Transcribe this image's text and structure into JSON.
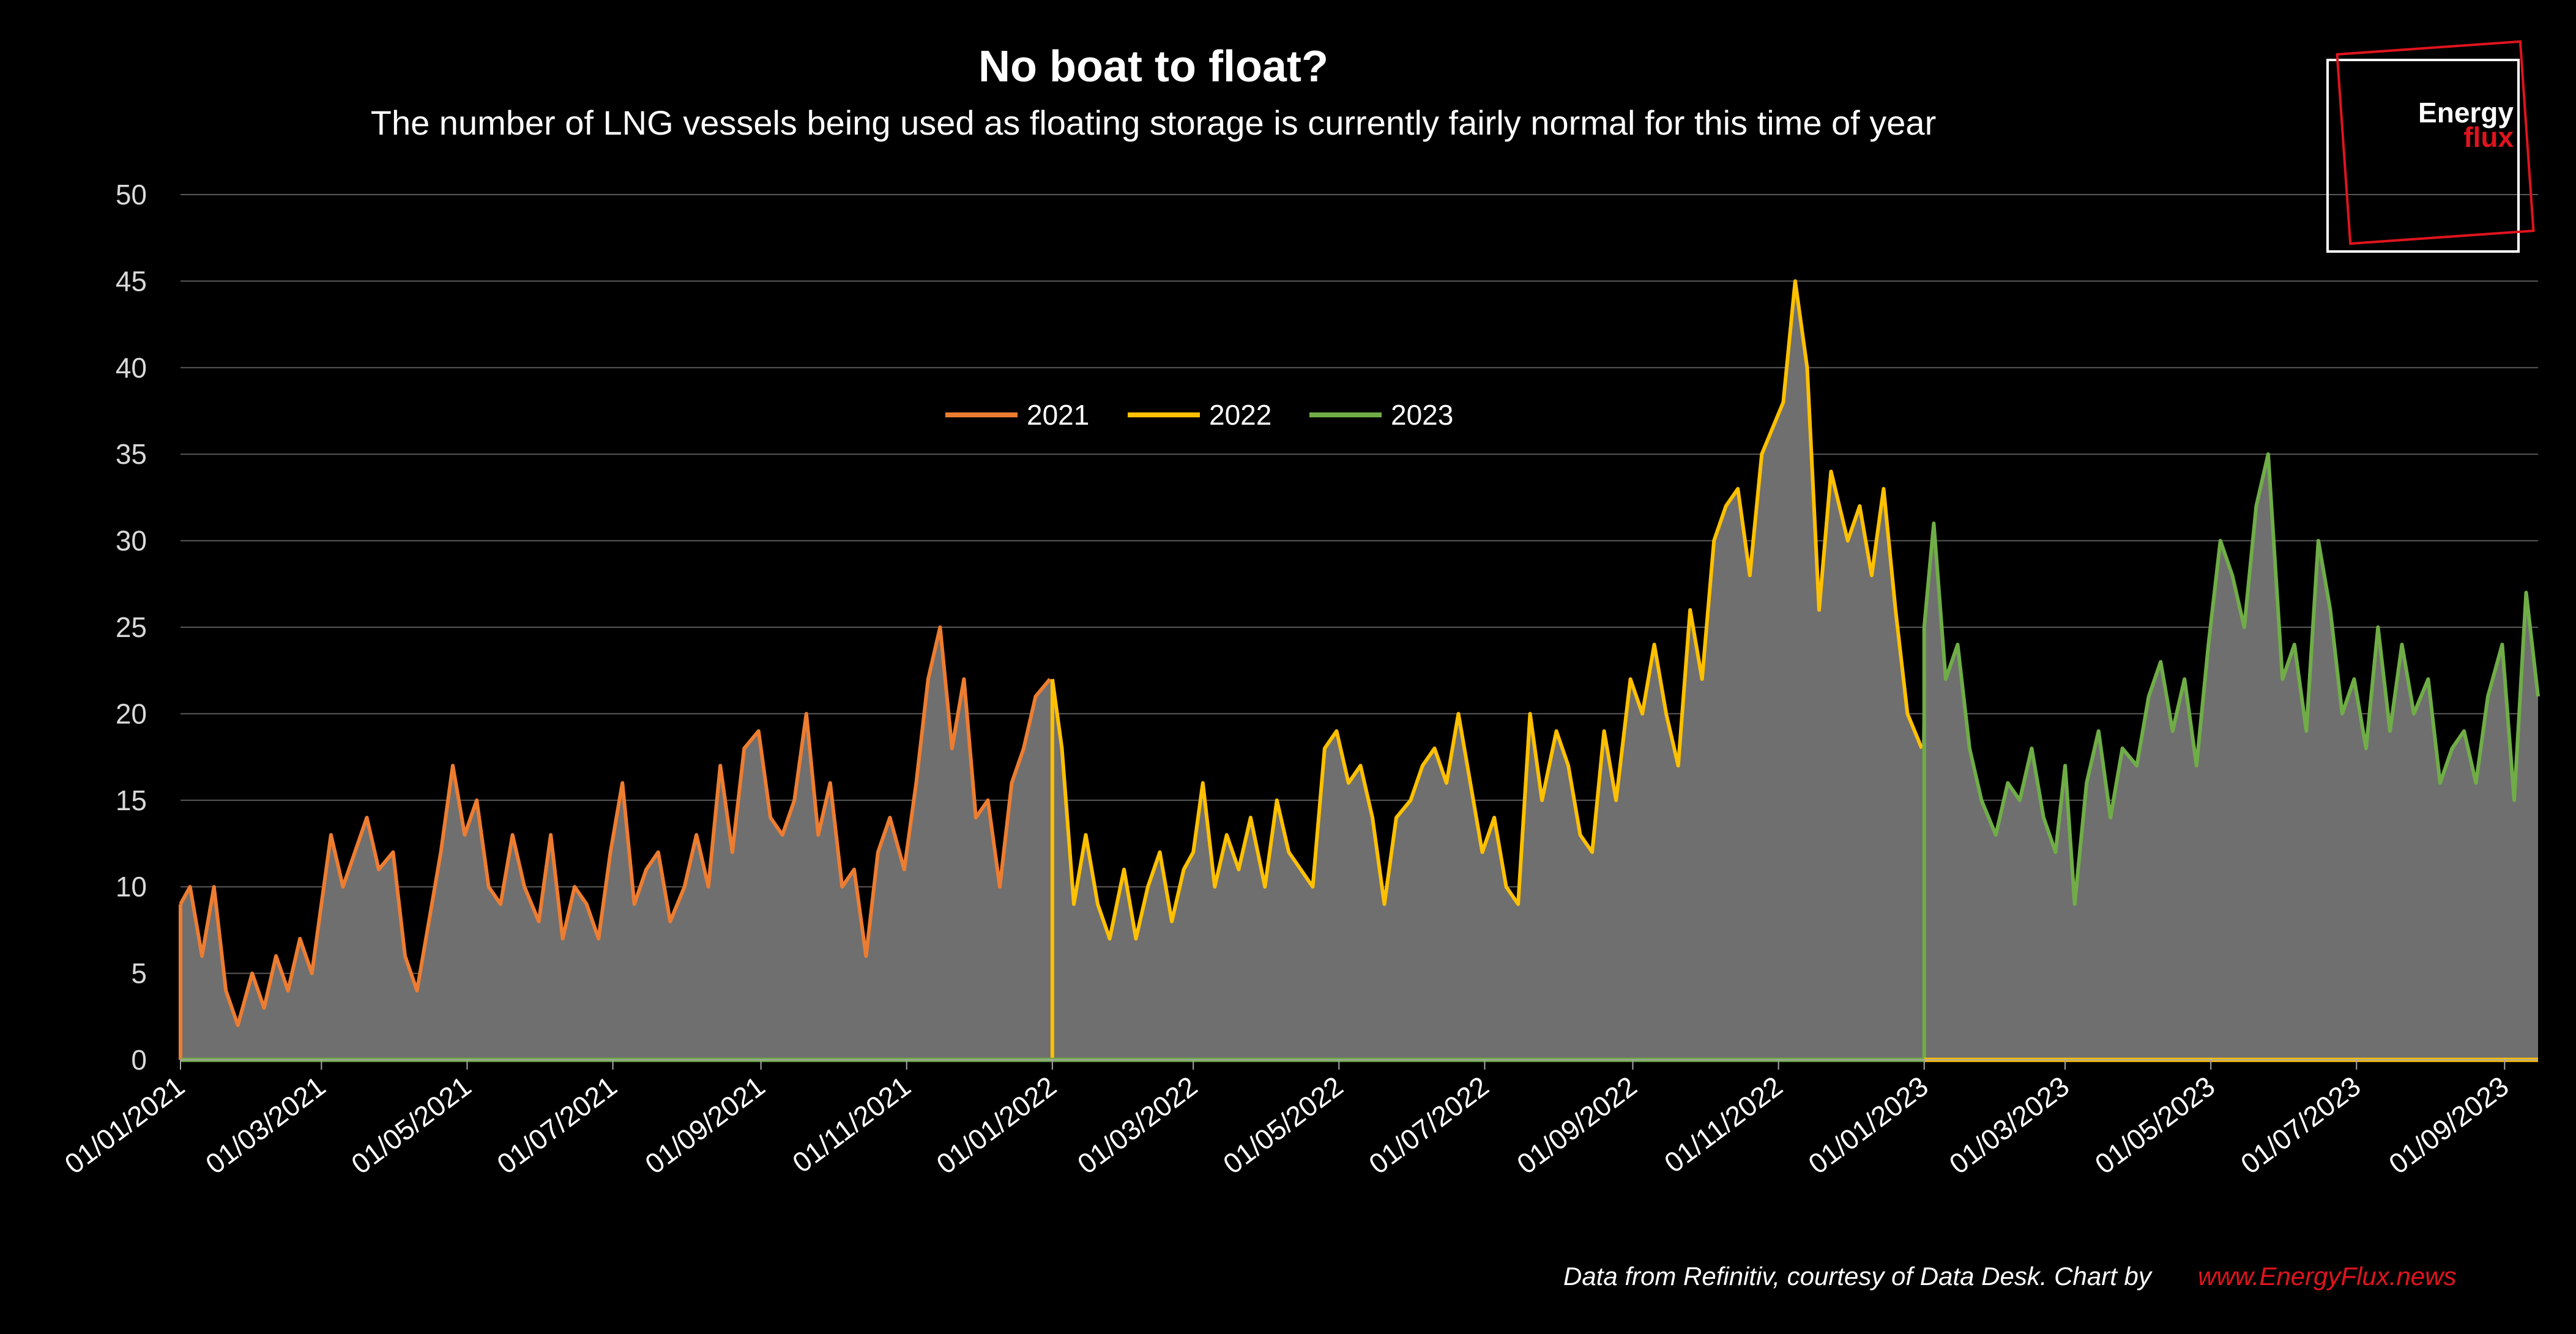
{
  "chart_data": {
    "type": "area",
    "title": "No boat to float?",
    "subtitle": "The number of LNG vessels being used as floating storage is currently fairly normal for this time of year",
    "ylim": [
      0,
      50
    ],
    "yticks": [
      0,
      5,
      10,
      15,
      20,
      25,
      30,
      35,
      40,
      45,
      50
    ],
    "xlim": [
      "2021-01-01",
      "2023-09-15"
    ],
    "xticks": [
      "01/01/2021",
      "01/03/2021",
      "01/05/2021",
      "01/07/2021",
      "01/09/2021",
      "01/11/2021",
      "01/01/2022",
      "01/03/2022",
      "01/05/2022",
      "01/07/2022",
      "01/09/2022",
      "01/11/2022",
      "01/01/2023",
      "01/03/2023",
      "01/05/2023",
      "01/07/2023",
      "01/09/2023"
    ],
    "grid": true,
    "legend_position": "top-center",
    "series": [
      {
        "name": "2021",
        "color": "#ed7d31",
        "x": [
          "2021-01-01",
          "2021-01-05",
          "2021-01-10",
          "2021-01-15",
          "2021-01-20",
          "2021-01-25",
          "2021-01-31",
          "2021-02-05",
          "2021-02-10",
          "2021-02-15",
          "2021-02-20",
          "2021-02-25",
          "2021-03-01",
          "2021-03-05",
          "2021-03-10",
          "2021-03-15",
          "2021-03-20",
          "2021-03-25",
          "2021-03-31",
          "2021-04-05",
          "2021-04-10",
          "2021-04-15",
          "2021-04-20",
          "2021-04-25",
          "2021-04-30",
          "2021-05-05",
          "2021-05-10",
          "2021-05-15",
          "2021-05-20",
          "2021-05-25",
          "2021-05-31",
          "2021-06-05",
          "2021-06-10",
          "2021-06-15",
          "2021-06-20",
          "2021-06-25",
          "2021-06-30",
          "2021-07-05",
          "2021-07-10",
          "2021-07-15",
          "2021-07-20",
          "2021-07-25",
          "2021-07-31",
          "2021-08-05",
          "2021-08-10",
          "2021-08-15",
          "2021-08-20",
          "2021-08-25",
          "2021-08-31",
          "2021-09-05",
          "2021-09-10",
          "2021-09-15",
          "2021-09-20",
          "2021-09-25",
          "2021-09-30",
          "2021-10-05",
          "2021-10-10",
          "2021-10-15",
          "2021-10-20",
          "2021-10-25",
          "2021-10-31",
          "2021-11-05",
          "2021-11-10",
          "2021-11-15",
          "2021-11-20",
          "2021-11-25",
          "2021-11-30",
          "2021-12-05",
          "2021-12-10",
          "2021-12-15",
          "2021-12-20",
          "2021-12-25",
          "2021-12-31"
        ],
        "values": [
          9,
          10,
          6,
          10,
          4,
          2,
          5,
          3,
          6,
          4,
          7,
          5,
          9,
          13,
          10,
          12,
          14,
          11,
          12,
          6,
          4,
          8,
          12,
          17,
          13,
          15,
          10,
          9,
          13,
          10,
          8,
          13,
          7,
          10,
          9,
          7,
          12,
          16,
          9,
          11,
          12,
          8,
          10,
          13,
          10,
          17,
          12,
          18,
          19,
          14,
          13,
          15,
          20,
          13,
          16,
          10,
          11,
          6,
          12,
          14,
          11,
          16,
          22,
          25,
          18,
          22,
          14,
          15,
          10,
          16,
          18,
          21,
          22
        ],
        "note": "Orange line, Jan–Dec 2021"
      },
      {
        "name": "2022",
        "color": "#ffc000",
        "x": [
          "2022-01-01",
          "2022-01-05",
          "2022-01-10",
          "2022-01-15",
          "2022-01-20",
          "2022-01-25",
          "2022-01-31",
          "2022-02-05",
          "2022-02-10",
          "2022-02-15",
          "2022-02-20",
          "2022-02-25",
          "2022-03-01",
          "2022-03-05",
          "2022-03-10",
          "2022-03-15",
          "2022-03-20",
          "2022-03-25",
          "2022-03-31",
          "2022-04-05",
          "2022-04-10",
          "2022-04-15",
          "2022-04-20",
          "2022-04-25",
          "2022-04-30",
          "2022-05-05",
          "2022-05-10",
          "2022-05-15",
          "2022-05-20",
          "2022-05-25",
          "2022-05-31",
          "2022-06-05",
          "2022-06-10",
          "2022-06-15",
          "2022-06-20",
          "2022-06-25",
          "2022-06-30",
          "2022-07-05",
          "2022-07-10",
          "2022-07-15",
          "2022-07-20",
          "2022-07-25",
          "2022-07-31",
          "2022-08-05",
          "2022-08-10",
          "2022-08-15",
          "2022-08-20",
          "2022-08-25",
          "2022-08-31",
          "2022-09-05",
          "2022-09-10",
          "2022-09-15",
          "2022-09-20",
          "2022-09-25",
          "2022-09-30",
          "2022-10-05",
          "2022-10-10",
          "2022-10-15",
          "2022-10-20",
          "2022-10-25",
          "2022-10-31",
          "2022-11-03",
          "2022-11-08",
          "2022-11-13",
          "2022-11-18",
          "2022-11-23",
          "2022-11-30",
          "2022-12-05",
          "2022-12-10",
          "2022-12-15",
          "2022-12-20",
          "2022-12-25",
          "2022-12-31"
        ],
        "values": [
          22,
          18,
          9,
          13,
          9,
          7,
          11,
          7,
          10,
          12,
          8,
          11,
          12,
          16,
          10,
          13,
          11,
          14,
          10,
          15,
          12,
          11,
          10,
          18,
          19,
          16,
          17,
          14,
          9,
          14,
          15,
          17,
          18,
          16,
          20,
          16,
          12,
          14,
          10,
          9,
          20,
          15,
          19,
          17,
          13,
          12,
          19,
          15,
          22,
          20,
          24,
          20,
          17,
          26,
          22,
          30,
          32,
          33,
          28,
          35,
          37,
          38,
          45,
          40,
          26,
          34,
          30,
          32,
          28,
          33,
          26,
          20,
          18
        ]
      },
      {
        "name": "2023",
        "color": "#70ad47",
        "x": [
          "2023-01-01",
          "2023-01-05",
          "2023-01-10",
          "2023-01-15",
          "2023-01-20",
          "2023-01-25",
          "2023-01-31",
          "2023-02-05",
          "2023-02-10",
          "2023-02-15",
          "2023-02-20",
          "2023-02-25",
          "2023-03-01",
          "2023-03-05",
          "2023-03-10",
          "2023-03-15",
          "2023-03-20",
          "2023-03-25",
          "2023-03-31",
          "2023-04-05",
          "2023-04-10",
          "2023-04-15",
          "2023-04-20",
          "2023-04-25",
          "2023-04-30",
          "2023-05-05",
          "2023-05-10",
          "2023-05-15",
          "2023-05-20",
          "2023-05-25",
          "2023-05-31",
          "2023-06-05",
          "2023-06-10",
          "2023-06-15",
          "2023-06-20",
          "2023-06-25",
          "2023-06-30",
          "2023-07-05",
          "2023-07-10",
          "2023-07-15",
          "2023-07-20",
          "2023-07-25",
          "2023-07-31",
          "2023-08-05",
          "2023-08-10",
          "2023-08-15",
          "2023-08-20",
          "2023-08-25",
          "2023-08-31",
          "2023-09-05",
          "2023-09-10",
          "2023-09-15"
        ],
        "values": [
          25,
          31,
          22,
          24,
          18,
          15,
          13,
          16,
          15,
          18,
          14,
          12,
          17,
          9,
          16,
          19,
          14,
          18,
          17,
          21,
          23,
          19,
          22,
          17,
          24,
          30,
          28,
          25,
          32,
          35,
          22,
          24,
          19,
          30,
          26,
          20,
          22,
          18,
          25,
          19,
          24,
          20,
          22,
          16,
          18,
          19,
          16,
          21,
          24,
          15,
          27,
          21
        ]
      }
    ],
    "filled_area": {
      "description_shown": "gray filled area under the combined line",
      "color": "#6f6f6f"
    },
    "source_text": "Data from Refinitiv, courtesy of Data Desk. Chart by",
    "source_link": "www.EnergyFlux.news",
    "logo": {
      "word1": "Energy",
      "word2": "flux"
    }
  },
  "colors": {
    "background": "#000000",
    "grid": "#595959",
    "area_fill": "#6f6f6f",
    "accent_red": "#e0141e"
  }
}
